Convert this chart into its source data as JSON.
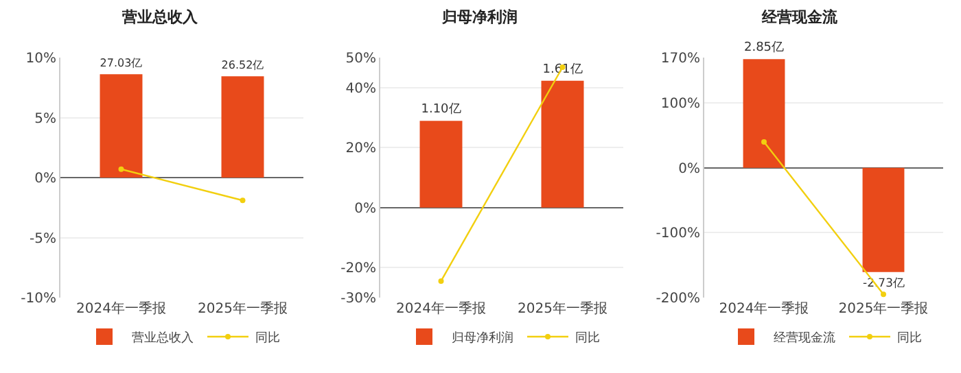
{
  "chart_data": [
    {
      "type": "bar",
      "title": "营业总收入",
      "categories": [
        "2024年一季报",
        "2025年一季报"
      ],
      "series": [
        {
          "name": "营业总收入",
          "type": "bar",
          "axis": "y2",
          "color": "#e84a1b",
          "values": [
            27.03,
            26.52
          ],
          "value_labels": [
            "27.03亿",
            "26.52亿"
          ]
        },
        {
          "name": "同比",
          "type": "line",
          "color": "#f2cf0f",
          "values": [
            0.7,
            -1.9
          ]
        }
      ],
      "ylim": [
        -10,
        10
      ],
      "yticks": [
        {
          "value": -10,
          "label": "-10%"
        },
        {
          "value": -5,
          "label": "-5%"
        },
        {
          "value": 0,
          "label": "0%"
        },
        {
          "value": 5,
          "label": "5%"
        },
        {
          "value": 10,
          "label": "10%"
        }
      ],
      "y2lim": [
        -31.4,
        31.4
      ],
      "grid": "y",
      "legend": "bottom",
      "marker": "circle"
    },
    {
      "type": "bar",
      "title": "归母净利润",
      "categories": [
        "2024年一季报",
        "2025年一季报"
      ],
      "series": [
        {
          "name": "归母净利润",
          "type": "bar",
          "axis": "y2",
          "color": "#e84a1b",
          "values": [
            1.1,
            1.61
          ],
          "value_labels": [
            "1.10亿",
            "1.61亿"
          ]
        },
        {
          "name": "同比",
          "type": "line",
          "color": "#f2cf0f",
          "values": [
            -24.5,
            46.8
          ]
        }
      ],
      "ylim": [
        -30,
        50
      ],
      "yticks": [
        {
          "value": -30,
          "label": "-30%"
        },
        {
          "value": -20,
          "label": "-20%"
        },
        {
          "value": 0,
          "label": "0%"
        },
        {
          "value": 20,
          "label": "20%"
        },
        {
          "value": 40,
          "label": "40%"
        },
        {
          "value": 50,
          "label": "50%"
        }
      ],
      "y2lim": [
        -1.142,
        1.903
      ],
      "grid": "y",
      "legend": "bottom",
      "marker": "circle"
    },
    {
      "type": "bar",
      "title": "经营现金流",
      "categories": [
        "2024年一季报",
        "2025年一季报"
      ],
      "series": [
        {
          "name": "经营现金流",
          "type": "bar",
          "axis": "y2",
          "color": "#e84a1b",
          "values": [
            2.85,
            -2.73
          ],
          "value_labels": [
            "2.85亿",
            "-2.73亿"
          ]
        },
        {
          "name": "同比",
          "type": "line",
          "color": "#f2cf0f",
          "values": [
            40,
            -195
          ]
        }
      ],
      "ylim": [
        -200,
        170
      ],
      "yticks": [
        {
          "value": -200,
          "label": "-200%"
        },
        {
          "value": -100,
          "label": "-100%"
        },
        {
          "value": 0,
          "label": "0%"
        },
        {
          "value": 100,
          "label": "100%"
        },
        {
          "value": 170,
          "label": "170%"
        }
      ],
      "y2lim": [
        -3.4,
        2.89
      ],
      "grid": "y",
      "legend": "bottom",
      "marker": "circle"
    }
  ]
}
